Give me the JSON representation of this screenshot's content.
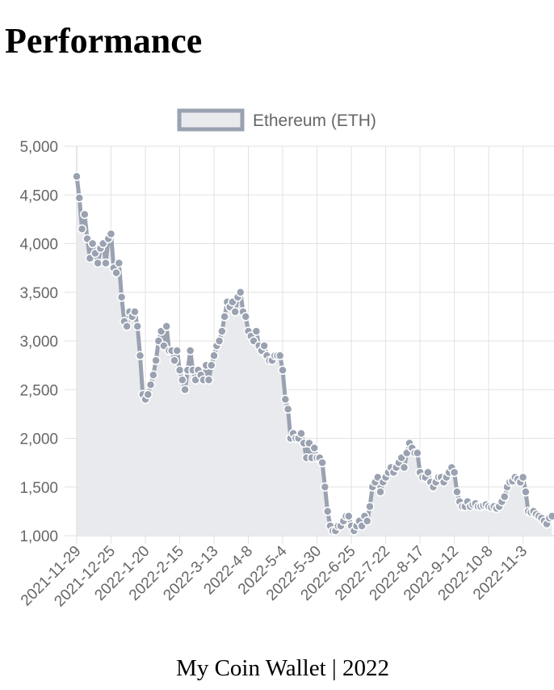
{
  "header": {
    "title": "Performance"
  },
  "chart_data": {
    "type": "line",
    "categories": [
      "2021-11-29",
      null,
      null,
      null,
      null,
      null,
      null,
      null,
      null,
      null,
      null,
      null,
      null,
      "2021-12-25",
      null,
      null,
      null,
      null,
      null,
      null,
      null,
      null,
      null,
      null,
      null,
      null,
      "2022-1-20",
      null,
      null,
      null,
      null,
      null,
      null,
      null,
      null,
      null,
      null,
      null,
      null,
      "2022-2-15",
      null,
      null,
      null,
      null,
      null,
      null,
      null,
      null,
      null,
      null,
      null,
      null,
      "2022-3-13",
      null,
      null,
      null,
      null,
      null,
      null,
      null,
      null,
      null,
      null,
      null,
      null,
      "2022-4-8",
      null,
      null,
      null,
      null,
      null,
      null,
      null,
      null,
      null,
      null,
      null,
      null,
      "2022-5-4",
      null,
      null,
      null,
      null,
      null,
      null,
      null,
      null,
      null,
      null,
      null,
      null,
      "2022-5-30",
      null,
      null,
      null,
      null,
      null,
      null,
      null,
      null,
      null,
      null,
      null,
      null,
      "2022-6-25",
      null,
      null,
      null,
      null,
      null,
      null,
      null,
      null,
      null,
      null,
      null,
      null,
      "2022-7-22",
      null,
      null,
      null,
      null,
      null,
      null,
      null,
      null,
      null,
      null,
      null,
      null,
      "2022-8-17",
      null,
      null,
      null,
      null,
      null,
      null,
      null,
      null,
      null,
      null,
      null,
      null,
      "2022-9-12",
      null,
      null,
      null,
      null,
      null,
      null,
      null,
      null,
      null,
      null,
      null,
      null,
      "2022-10-8",
      null,
      null,
      null,
      null,
      null,
      null,
      null,
      null,
      null,
      null,
      null,
      null,
      "2022-11-3",
      null,
      null,
      null,
      null,
      null,
      null,
      null,
      null,
      null,
      null,
      null
    ],
    "series": [
      {
        "name": "Ethereum (ETH)",
        "color": "#9aa2b1",
        "fill": "#e9eaee",
        "values": [
          4690,
          4470,
          4150,
          4300,
          4050,
          3850,
          4000,
          3900,
          3800,
          3950,
          4000,
          3800,
          4050,
          4100,
          3750,
          3700,
          3800,
          3450,
          3200,
          3150,
          3300,
          3250,
          3300,
          3150,
          2850,
          2450,
          2400,
          2450,
          2550,
          2650,
          2800,
          3000,
          3100,
          2950,
          3150,
          2900,
          2900,
          2800,
          2900,
          2700,
          2600,
          2500,
          2700,
          2900,
          2700,
          2600,
          2700,
          2650,
          2600,
          2750,
          2600,
          2750,
          2850,
          2950,
          3000,
          3100,
          3250,
          3400,
          3350,
          3400,
          3300,
          3450,
          3500,
          3300,
          3250,
          3100,
          3050,
          3000,
          3100,
          2950,
          2900,
          2950,
          2850,
          2800,
          2800,
          2850,
          2850,
          2850,
          2700,
          2400,
          2300,
          2000,
          2050,
          2000,
          2000,
          2050,
          1950,
          1800,
          1950,
          1800,
          1900,
          1800,
          1800,
          1750,
          1500,
          1250,
          1100,
          1050,
          1050,
          1100,
          1100,
          1150,
          1200,
          1200,
          1100,
          1050,
          1100,
          1150,
          1100,
          1200,
          1150,
          1300,
          1500,
          1550,
          1600,
          1450,
          1550,
          1600,
          1650,
          1700,
          1650,
          1700,
          1750,
          1800,
          1700,
          1850,
          1950,
          1900,
          1850,
          1850,
          1650,
          1600,
          1600,
          1650,
          1550,
          1500,
          1550,
          1600,
          1600,
          1550,
          1600,
          1650,
          1700,
          1650,
          1450,
          1350,
          1300,
          1300,
          1350,
          1300,
          1320,
          1330,
          1300,
          1300,
          1310,
          1320,
          1300,
          1290,
          1300,
          1280,
          1300,
          1350,
          1400,
          1500,
          1550,
          1560,
          1600,
          1580,
          1550,
          1600,
          1450,
          1250,
          1240,
          1250,
          1220,
          1200,
          1180,
          1150,
          1120,
          1180,
          1200
        ]
      }
    ],
    "ylim": [
      1000,
      5000
    ],
    "yticks": [
      {
        "value": 1000,
        "label": "1,000"
      },
      {
        "value": 1500,
        "label": "1,500"
      },
      {
        "value": 2000,
        "label": "2,000"
      },
      {
        "value": 2500,
        "label": "2,500"
      },
      {
        "value": 3000,
        "label": "3,000"
      },
      {
        "value": 3500,
        "label": "3,500"
      },
      {
        "value": 4000,
        "label": "4,000"
      },
      {
        "value": 4500,
        "label": "4,500"
      },
      {
        "value": 5000,
        "label": "5,000"
      }
    ],
    "grid": true,
    "legend": "top"
  },
  "footer": {
    "text": "My Coin Wallet | 2022"
  }
}
